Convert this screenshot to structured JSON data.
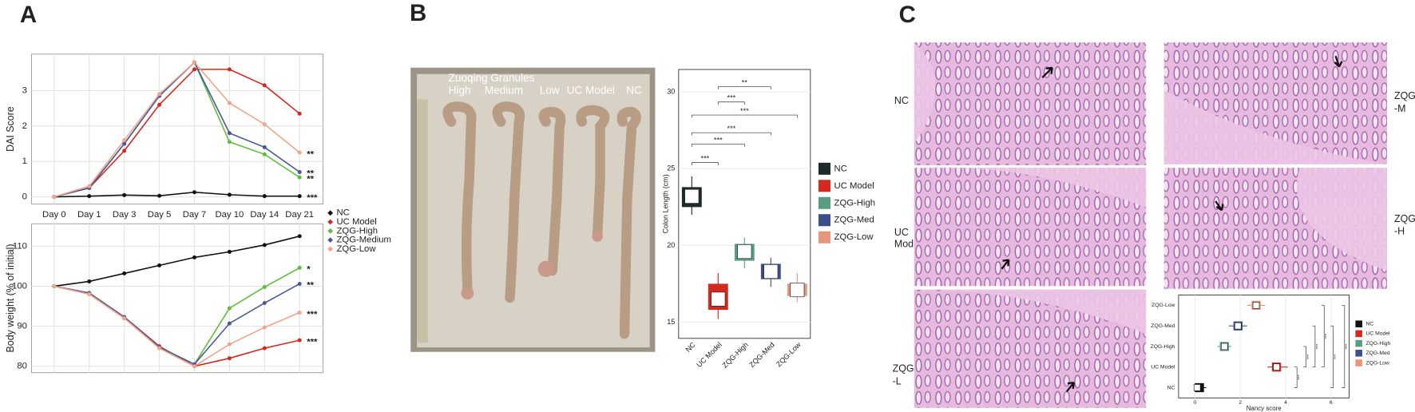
{
  "panel_labels": [
    "A",
    "B",
    "C"
  ],
  "photo": {
    "title": "Zuoqing Granules",
    "labels": [
      "High",
      "Medium",
      "Low",
      "UC Model",
      "NC"
    ]
  },
  "histology": {
    "labels": [
      [
        "NC"
      ],
      [
        "UC",
        "Mod"
      ],
      [
        "ZQG",
        "-L"
      ],
      [
        "ZQG",
        "-M"
      ],
      [
        "ZQG",
        "-H"
      ]
    ]
  },
  "chart_data": [
    {
      "type": "line",
      "ylabel": "DAI Score",
      "categories": [
        "Day 0",
        "Day 1",
        "Day 3",
        "Day 5",
        "Day 7",
        "Day 10",
        "Day 14",
        "Day 21"
      ],
      "ylim": [
        -0.2,
        4.03
      ],
      "yticks": [
        0,
        1,
        2,
        3
      ],
      "grid": true,
      "legend": "bottom-right",
      "series": [
        {
          "name": "NC",
          "color": "#111111",
          "values": [
            0,
            0.02,
            0.05,
            0.03,
            0.13,
            0.06,
            0.02,
            0.02
          ],
          "end_label": "***"
        },
        {
          "name": "UC Model",
          "color": "#d7261e",
          "values": [
            0,
            0.25,
            1.3,
            2.6,
            3.6,
            3.6,
            3.15,
            2.35
          ]
        },
        {
          "name": "ZQG-High",
          "color": "#5cbf3a",
          "values": [
            0,
            0.25,
            1.5,
            2.85,
            3.8,
            1.55,
            1.2,
            0.55
          ],
          "end_label": "**"
        },
        {
          "name": "ZQG-Medium",
          "color": "#4a5896",
          "values": [
            0,
            0.25,
            1.5,
            2.85,
            3.8,
            1.8,
            1.4,
            0.7
          ],
          "end_label": "**"
        },
        {
          "name": "ZQG-Low",
          "color": "#f0a48a",
          "values": [
            0,
            0.3,
            1.6,
            2.9,
            3.8,
            2.65,
            2.05,
            1.25
          ],
          "end_label": "**"
        }
      ]
    },
    {
      "type": "line",
      "ylabel": "Body weight (% of initial)",
      "ylim": [
        78.4,
        115.6
      ],
      "yticks": [
        80,
        90,
        100,
        110
      ],
      "grid": true,
      "series": [
        {
          "color": "#111111",
          "values": [
            100,
            101.2,
            103.2,
            105.2,
            107.2,
            108.6,
            110.3,
            112.5
          ]
        },
        {
          "color": "#d7261e",
          "values": [
            100,
            98.3,
            92.3,
            85,
            80,
            82,
            84.5,
            86.5
          ],
          "end_label": "***"
        },
        {
          "color": "#5cbf3a",
          "values": [
            100,
            98,
            92,
            84.7,
            80.5,
            94.5,
            99.8,
            104.6
          ],
          "end_label": "*"
        },
        {
          "color": "#4a5896",
          "values": [
            100,
            98.3,
            92.3,
            84.8,
            80.5,
            90.7,
            95.8,
            100.6
          ],
          "end_label": "**"
        },
        {
          "color": "#f0a48a",
          "values": [
            100,
            98,
            92,
            84.5,
            80,
            85.5,
            89.7,
            93.4
          ],
          "end_label": "***"
        }
      ]
    },
    {
      "type": "box",
      "ylabel": "Colon Length (cm)",
      "categories": [
        "NC",
        "UC Model",
        "ZQG-High",
        "ZQG-Med",
        "ZQG-Low"
      ],
      "colors": [
        "#1c2b2a",
        "#d42a1b",
        "#5a9e82",
        "#3d4e8a",
        "#e8957a"
      ],
      "ylim": [
        13.94,
        31.47
      ],
      "yticks": [
        15,
        20,
        25,
        30
      ],
      "legend": "right",
      "boxes": [
        {
          "min": 22,
          "q1": 22.5,
          "median": 23.2,
          "q3": 23.8,
          "max": 24.5
        },
        {
          "min": 15.2,
          "q1": 15.8,
          "median": 16.5,
          "q3": 17.5,
          "max": 18.2
        },
        {
          "min": 18.5,
          "q1": 19,
          "median": 19.6,
          "q3": 20.1,
          "max": 20.5
        },
        {
          "min": 17.3,
          "q1": 17.8,
          "median": 18.3,
          "q3": 18.8,
          "max": 19.2
        },
        {
          "min": 16.3,
          "q1": 16.7,
          "median": 17.1,
          "q3": 17.5,
          "max": 18.2
        }
      ],
      "brackets": [
        {
          "groups": [
            "UC Model",
            "ZQG-Med"
          ],
          "at": 30.35,
          "label": "**"
        },
        {
          "groups": [
            "UC Model",
            "ZQG-High"
          ],
          "at": 29.35,
          "label": "***"
        },
        {
          "groups": [
            "NC",
            "ZQG-Low"
          ],
          "at": 28.5,
          "label": "***"
        },
        {
          "groups": [
            "NC",
            "ZQG-Med"
          ],
          "at": 27.35,
          "label": "***"
        },
        {
          "groups": [
            "NC",
            "ZQG-High"
          ],
          "at": 26.6,
          "label": "***"
        },
        {
          "groups": [
            "NC",
            "UC Model"
          ],
          "at": 25.4,
          "label": "***"
        }
      ]
    },
    {
      "type": "hbox",
      "xlabel": "Nancy score",
      "categories": [
        "NC",
        "UC Model",
        "ZQG-High",
        "ZQG-Med",
        "ZQG-Low"
      ],
      "colors": [
        "#111111",
        "#d42a1b",
        "#5a9e82",
        "#3d4e8a",
        "#e8957a"
      ],
      "xlim": [
        -0.72,
        6.8
      ],
      "xticks": [
        0,
        2,
        4,
        6
      ],
      "legend": "right",
      "boxes": [
        {
          "min": 0,
          "q1": 0,
          "median": 0.1,
          "q3": 0.4,
          "max": 0.5
        },
        {
          "min": 3.2,
          "q1": 3.4,
          "median": 3.6,
          "q3": 3.8,
          "max": 4.1
        },
        {
          "min": 1,
          "q1": 1.1,
          "median": 1.3,
          "q3": 1.5,
          "max": 1.6
        },
        {
          "min": 1.5,
          "q1": 1.7,
          "median": 1.9,
          "q3": 2.1,
          "max": 2.3
        },
        {
          "min": 2.3,
          "q1": 2.5,
          "median": 2.7,
          "q3": 2.9,
          "max": 3.1
        }
      ],
      "brackets": [
        {
          "groups": [
            "NC",
            "UC Model"
          ],
          "at": 4.5,
          "label": "***"
        },
        {
          "groups": [
            "UC Model",
            "ZQG-High"
          ],
          "at": 4.9,
          "label": "***"
        },
        {
          "groups": [
            "UC Model",
            "ZQG-Med"
          ],
          "at": 5.3,
          "label": "***"
        },
        {
          "groups": [
            "UC Model",
            "ZQG-Low"
          ],
          "at": 5.7,
          "label": "***"
        },
        {
          "groups": [
            "NC",
            "ZQG-Med"
          ],
          "at": 6.1,
          "label": "***"
        },
        {
          "groups": [
            "NC",
            "ZQG-Low"
          ],
          "at": 6.6,
          "label": "***"
        }
      ]
    }
  ]
}
